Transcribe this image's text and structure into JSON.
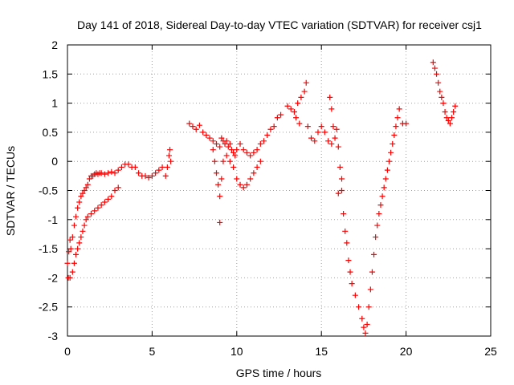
{
  "chart_data": {
    "type": "scatter",
    "title": "Day 141 of 2018, Sidereal Day-to-day VTEC variation (SDTVAR) for receiver csj1",
    "xlabel": "GPS time / hours",
    "ylabel": "SDTVAR / TECUs",
    "xlim": [
      0,
      25
    ],
    "ylim": [
      -3,
      2
    ],
    "xticks": [
      "0",
      "5",
      "10",
      "15",
      "20",
      "25"
    ],
    "yticks": [
      "-3",
      "-2.5",
      "-2",
      "-1.5",
      "-1",
      "-0.5",
      "0",
      "0.5",
      "1",
      "1.5",
      "2"
    ],
    "grid": true,
    "marker": "plus",
    "color": "#ff0000",
    "series": [
      {
        "values": [
          [
            0.0,
            -1.75
          ],
          [
            0.08,
            -1.55
          ],
          [
            0.15,
            -1.35
          ],
          [
            0.2,
            -1.5
          ],
          [
            0.3,
            -1.3
          ],
          [
            0.4,
            -1.1
          ],
          [
            0.5,
            -0.95
          ],
          [
            0.6,
            -0.8
          ],
          [
            0.7,
            -0.7
          ],
          [
            0.8,
            -0.6
          ],
          [
            0.9,
            -0.55
          ],
          [
            1.0,
            -0.5
          ],
          [
            1.1,
            -0.45
          ],
          [
            1.2,
            -0.4
          ],
          [
            1.3,
            -0.3
          ],
          [
            1.4,
            -0.25
          ],
          [
            1.5,
            -0.25
          ],
          [
            1.6,
            -0.22
          ],
          [
            1.7,
            -0.2
          ],
          [
            1.8,
            -0.22
          ],
          [
            1.9,
            -0.2
          ],
          [
            2.0,
            -0.2
          ],
          [
            2.2,
            -0.22
          ],
          [
            2.4,
            -0.2
          ],
          [
            2.6,
            -0.18
          ],
          [
            2.8,
            -0.2
          ],
          [
            3.0,
            -0.15
          ],
          [
            3.2,
            -0.1
          ],
          [
            3.4,
            -0.05
          ],
          [
            3.6,
            -0.05
          ],
          [
            3.8,
            -0.1
          ],
          [
            0.05,
            -2.0
          ],
          [
            0.15,
            -2.0
          ],
          [
            0.3,
            -1.9
          ],
          [
            0.4,
            -1.75
          ],
          [
            0.5,
            -1.6
          ],
          [
            0.6,
            -1.5
          ],
          [
            0.7,
            -1.4
          ],
          [
            0.8,
            -1.3
          ],
          [
            0.9,
            -1.2
          ],
          [
            1.0,
            -1.1
          ],
          [
            1.1,
            -1.0
          ],
          [
            1.2,
            -0.95
          ],
          [
            1.4,
            -0.9
          ],
          [
            1.6,
            -0.85
          ],
          [
            1.8,
            -0.8
          ],
          [
            2.0,
            -0.75
          ],
          [
            2.2,
            -0.7
          ],
          [
            2.4,
            -0.65
          ],
          [
            2.6,
            -0.6
          ],
          [
            2.8,
            -0.5
          ],
          [
            3.0,
            -0.45
          ],
          [
            4.0,
            -0.1
          ],
          [
            4.2,
            -0.2
          ],
          [
            4.4,
            -0.25
          ],
          [
            4.6,
            -0.25
          ],
          [
            4.8,
            -0.28
          ],
          [
            5.0,
            -0.25
          ],
          [
            5.2,
            -0.2
          ],
          [
            5.4,
            -0.15
          ],
          [
            5.6,
            -0.1
          ],
          [
            5.8,
            -0.25
          ],
          [
            5.9,
            -0.1
          ],
          [
            6.0,
            0.1
          ],
          [
            6.05,
            0.2
          ],
          [
            6.1,
            0.0
          ],
          [
            7.2,
            0.65
          ],
          [
            7.4,
            0.6
          ],
          [
            7.6,
            0.55
          ],
          [
            7.8,
            0.62
          ],
          [
            8.0,
            0.5
          ],
          [
            8.2,
            0.45
          ],
          [
            8.4,
            0.4
          ],
          [
            8.6,
            0.35
          ],
          [
            8.8,
            0.3
          ],
          [
            9.0,
            0.25
          ],
          [
            9.1,
            0.4
          ],
          [
            9.2,
            0.35
          ],
          [
            9.3,
            0.3
          ],
          [
            9.4,
            0.35
          ],
          [
            9.5,
            0.25
          ],
          [
            9.6,
            0.3
          ],
          [
            9.7,
            0.2
          ],
          [
            9.8,
            0.15
          ],
          [
            9.9,
            0.1
          ],
          [
            10.0,
            0.2
          ],
          [
            10.2,
            0.3
          ],
          [
            10.4,
            0.2
          ],
          [
            10.6,
            0.15
          ],
          [
            10.8,
            0.1
          ],
          [
            11.0,
            0.15
          ],
          [
            11.2,
            0.2
          ],
          [
            11.4,
            0.3
          ],
          [
            11.6,
            0.35
          ],
          [
            11.8,
            0.45
          ],
          [
            12.0,
            0.55
          ],
          [
            12.2,
            0.6
          ],
          [
            12.4,
            0.75
          ],
          [
            12.6,
            0.8
          ],
          [
            8.6,
            0.2
          ],
          [
            8.7,
            0.0
          ],
          [
            8.8,
            -0.2
          ],
          [
            8.9,
            -0.4
          ],
          [
            9.0,
            -0.6
          ],
          [
            9.1,
            -0.3
          ],
          [
            9.2,
            0.0
          ],
          [
            9.4,
            0.1
          ],
          [
            9.6,
            0.0
          ],
          [
            9.8,
            -0.1
          ],
          [
            10.0,
            -0.3
          ],
          [
            10.2,
            -0.4
          ],
          [
            10.4,
            -0.45
          ],
          [
            10.6,
            -0.4
          ],
          [
            10.8,
            -0.3
          ],
          [
            11.0,
            -0.2
          ],
          [
            11.2,
            -0.1
          ],
          [
            11.4,
            0.0
          ],
          [
            9.0,
            -1.05
          ],
          [
            13.0,
            0.95
          ],
          [
            13.2,
            0.9
          ],
          [
            13.4,
            0.85
          ],
          [
            13.6,
            1.0
          ],
          [
            13.8,
            1.1
          ],
          [
            14.0,
            1.2
          ],
          [
            14.1,
            1.35
          ],
          [
            13.5,
            0.75
          ],
          [
            13.7,
            0.65
          ],
          [
            14.2,
            0.6
          ],
          [
            14.4,
            0.4
          ],
          [
            14.6,
            0.35
          ],
          [
            14.8,
            0.5
          ],
          [
            15.0,
            0.6
          ],
          [
            15.2,
            0.5
          ],
          [
            15.4,
            0.35
          ],
          [
            15.6,
            0.3
          ],
          [
            15.8,
            0.4
          ],
          [
            15.9,
            0.55
          ],
          [
            16.0,
            0.25
          ],
          [
            16.1,
            -0.1
          ],
          [
            16.2,
            -0.5
          ],
          [
            16.3,
            -0.9
          ],
          [
            16.4,
            -1.2
          ],
          [
            16.5,
            -1.4
          ],
          [
            16.6,
            -1.7
          ],
          [
            16.7,
            -1.9
          ],
          [
            16.8,
            -2.1
          ],
          [
            17.0,
            -2.3
          ],
          [
            17.2,
            -2.5
          ],
          [
            17.4,
            -2.7
          ],
          [
            17.5,
            -2.85
          ],
          [
            17.6,
            -2.95
          ],
          [
            17.7,
            -2.8
          ],
          [
            17.8,
            -2.5
          ],
          [
            17.9,
            -2.2
          ],
          [
            18.0,
            -1.9
          ],
          [
            18.1,
            -1.6
          ],
          [
            18.2,
            -1.3
          ],
          [
            18.3,
            -1.1
          ],
          [
            18.4,
            -0.9
          ],
          [
            18.5,
            -0.75
          ],
          [
            18.6,
            -0.6
          ],
          [
            18.7,
            -0.45
          ],
          [
            18.8,
            -0.3
          ],
          [
            18.9,
            -0.15
          ],
          [
            19.0,
            0.0
          ],
          [
            19.1,
            0.15
          ],
          [
            19.2,
            0.3
          ],
          [
            19.3,
            0.45
          ],
          [
            19.4,
            0.6
          ],
          [
            19.5,
            0.75
          ],
          [
            19.6,
            0.9
          ],
          [
            19.8,
            0.65
          ],
          [
            20.0,
            0.65
          ],
          [
            15.5,
            1.1
          ],
          [
            15.6,
            0.9
          ],
          [
            15.7,
            0.6
          ],
          [
            16.0,
            -0.55
          ],
          [
            16.2,
            -0.3
          ],
          [
            21.6,
            1.7
          ],
          [
            21.7,
            1.6
          ],
          [
            21.8,
            1.5
          ],
          [
            21.9,
            1.35
          ],
          [
            22.0,
            1.2
          ],
          [
            22.1,
            1.1
          ],
          [
            22.2,
            1.0
          ],
          [
            22.3,
            0.85
          ],
          [
            22.4,
            0.75
          ],
          [
            22.5,
            0.7
          ],
          [
            22.6,
            0.65
          ],
          [
            22.7,
            0.75
          ],
          [
            22.8,
            0.85
          ],
          [
            22.9,
            0.95
          ]
        ]
      }
    ]
  }
}
